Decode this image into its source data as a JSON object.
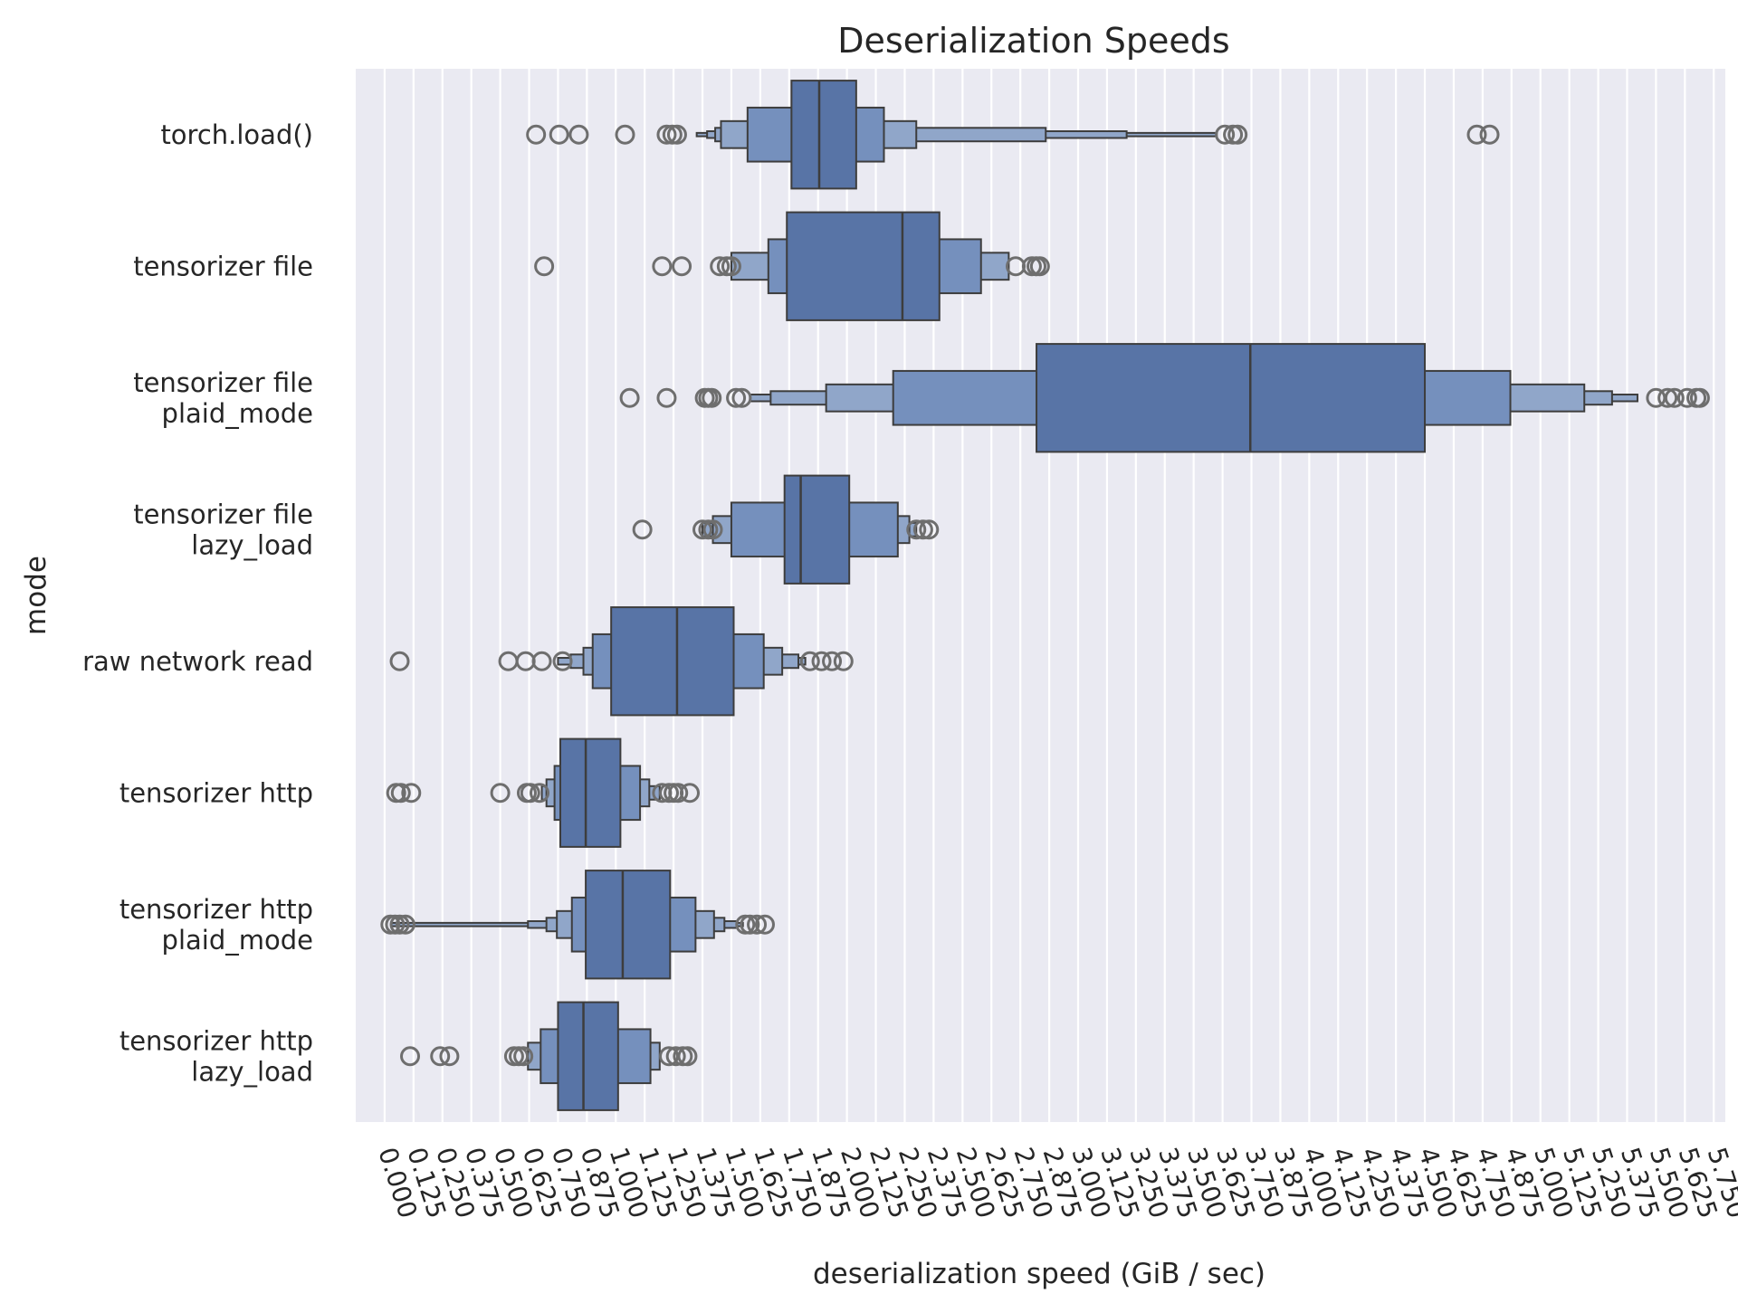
{
  "chart_data": {
    "type": "boxenplot",
    "orientation": "horizontal",
    "title": "Deserialization Speeds",
    "xlabel": "deserialization speed (GiB / sec)",
    "ylabel": "mode",
    "xlim": [
      -0.125,
      5.8
    ],
    "x_ticks": [
      "0.000",
      "0.125",
      "0.250",
      "0.375",
      "0.500",
      "0.625",
      "0.750",
      "0.875",
      "1.000",
      "1.125",
      "1.250",
      "1.375",
      "1.500",
      "1.625",
      "1.750",
      "1.875",
      "2.000",
      "2.125",
      "2.250",
      "2.375",
      "2.500",
      "2.625",
      "2.750",
      "2.875",
      "3.000",
      "3.125",
      "3.250",
      "3.375",
      "3.500",
      "3.625",
      "3.750",
      "3.875",
      "4.000",
      "4.125",
      "4.250",
      "4.375",
      "4.500",
      "4.625",
      "4.750",
      "4.875",
      "5.000",
      "5.125",
      "5.250",
      "5.375",
      "5.500",
      "5.625",
      "5.750"
    ],
    "grid": "vertical",
    "colors": {
      "background": "#eaeaf2",
      "grid": "#ffffff",
      "box_dark": "#5874a6",
      "box_mid": "#7590bd",
      "box_light": "#90a6c9",
      "edge": "#3d3d3d",
      "outlier": "#6e6e6e"
    },
    "categories": [
      {
        "name": "torch.load()",
        "label_lines": [
          "torch.load()"
        ],
        "median": 1.88,
        "levels": [
          [
            1.76,
            2.04
          ],
          [
            1.57,
            2.16
          ],
          [
            1.455,
            2.3
          ],
          [
            1.43,
            2.86
          ],
          [
            1.395,
            3.21
          ],
          [
            1.35,
            3.6
          ]
        ],
        "outliers": [
          0.655,
          0.755,
          0.84,
          1.04,
          1.22,
          1.265,
          1.245,
          3.635,
          3.67,
          3.69,
          4.725,
          4.78
        ]
      },
      {
        "name": "tensorizer file",
        "label_lines": [
          "tensorizer file"
        ],
        "median": 2.24,
        "levels": [
          [
            1.74,
            2.4
          ],
          [
            1.66,
            2.58
          ],
          [
            1.5,
            2.7
          ]
        ],
        "outliers": [
          0.69,
          1.2,
          1.285,
          1.45,
          1.48,
          1.5,
          2.73,
          2.8,
          2.82,
          2.835
        ]
      },
      {
        "name": "tensorizer file plaid_mode",
        "label_lines": [
          "tensorizer file",
          "plaid_mode"
        ],
        "median": 3.745,
        "levels": [
          [
            2.82,
            4.5
          ],
          [
            2.2,
            4.87
          ],
          [
            1.91,
            5.19
          ],
          [
            1.67,
            5.31
          ],
          [
            1.58,
            5.42
          ]
        ],
        "outliers": [
          1.06,
          1.22,
          1.385,
          1.4,
          1.415,
          1.52,
          1.545,
          5.5,
          5.55,
          5.58,
          5.635,
          5.675,
          5.69
        ]
      },
      {
        "name": "tensorizer file lazy_load",
        "label_lines": [
          "tensorizer file",
          "lazy_load"
        ],
        "median": 1.8,
        "levels": [
          [
            1.73,
            2.01
          ],
          [
            1.5,
            2.22
          ],
          [
            1.42,
            2.27
          ],
          [
            1.375,
            2.3
          ]
        ],
        "outliers": [
          1.115,
          1.375,
          1.4,
          1.42,
          2.3,
          2.33,
          2.355
        ]
      },
      {
        "name": "raw network read",
        "label_lines": [
          "raw network read"
        ],
        "median": 1.265,
        "levels": [
          [
            0.98,
            1.51
          ],
          [
            0.9,
            1.64
          ],
          [
            0.86,
            1.72
          ],
          [
            0.805,
            1.79
          ],
          [
            0.75,
            1.82
          ]
        ],
        "outliers": [
          0.065,
          0.535,
          0.61,
          0.68,
          0.77,
          1.84,
          1.89,
          1.935,
          1.985
        ]
      },
      {
        "name": "tensorizer http",
        "label_lines": [
          "tensorizer http"
        ],
        "median": 0.87,
        "levels": [
          [
            0.76,
            1.02
          ],
          [
            0.735,
            1.105
          ],
          [
            0.7,
            1.145
          ],
          [
            0.68,
            1.19
          ]
        ],
        "outliers": [
          0.05,
          0.07,
          0.115,
          0.5,
          0.615,
          0.63,
          0.67,
          1.2,
          1.23,
          1.25,
          1.27,
          1.32
        ]
      },
      {
        "name": "tensorizer http plaid_mode",
        "label_lines": [
          "tensorizer http",
          "plaid_mode"
        ],
        "median": 1.03,
        "levels": [
          [
            0.87,
            1.235
          ],
          [
            0.81,
            1.345
          ],
          [
            0.745,
            1.425
          ],
          [
            0.7,
            1.47
          ],
          [
            0.62,
            1.525
          ],
          [
            0.03,
            1.55
          ]
        ],
        "outliers": [
          0.025,
          0.045,
          0.065,
          0.09,
          1.56,
          1.58,
          1.61,
          1.645
        ]
      },
      {
        "name": "tensorizer http lazy_load",
        "label_lines": [
          "tensorizer http",
          "lazy_load"
        ],
        "median": 0.86,
        "levels": [
          [
            0.75,
            1.01
          ],
          [
            0.675,
            1.15
          ],
          [
            0.62,
            1.19
          ]
        ],
        "outliers": [
          0.11,
          0.24,
          0.28,
          0.56,
          0.58,
          0.6,
          1.23,
          1.26,
          1.29,
          1.31
        ]
      }
    ]
  }
}
